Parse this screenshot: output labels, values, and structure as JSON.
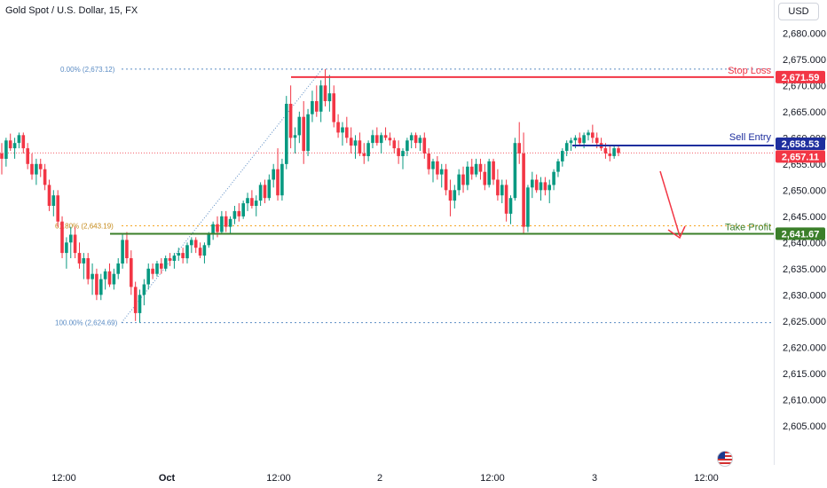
{
  "header": {
    "title": "Gold Spot / U.S. Dollar, 15, FX",
    "currency": "USD"
  },
  "chart_data": {
    "type": "candlestick",
    "ylim": [
      2603,
      2684
    ],
    "y_ticks": [
      2605,
      2610,
      2615,
      2620,
      2625,
      2630,
      2635,
      2640,
      2645,
      2650,
      2655,
      2660,
      2665,
      2670,
      2675,
      2680
    ],
    "x_ticks": [
      "12:00",
      "Oct",
      "12:00",
      "2",
      "12:00",
      "3",
      "12:00"
    ],
    "colors": {
      "up": "#089981",
      "down": "#f23645",
      "stop": "#f23645",
      "entry": "#1e2e9e",
      "take": "#3b7f2a",
      "fib": "#5b8cc4",
      "fib618": "#f5a623",
      "arrow": "#f23645"
    },
    "candles_ohlc": [
      [
        2657.0,
        2659.0,
        2653.0,
        2656.0
      ],
      [
        2656.0,
        2660.0,
        2654.5,
        2659.5
      ],
      [
        2659.5,
        2660.8,
        2657.5,
        2658.0
      ],
      [
        2658.0,
        2660.0,
        2656.0,
        2659.0
      ],
      [
        2659.0,
        2661.0,
        2658.0,
        2660.5
      ],
      [
        2660.5,
        2661.0,
        2657.0,
        2658.0
      ],
      [
        2658.0,
        2659.0,
        2654.0,
        2655.0
      ],
      [
        2655.0,
        2657.0,
        2652.0,
        2653.0
      ],
      [
        2653.0,
        2656.0,
        2651.0,
        2655.0
      ],
      [
        2655.0,
        2656.0,
        2652.5,
        2654.0
      ],
      [
        2654.0,
        2655.0,
        2650.0,
        2651.0
      ],
      [
        2651.0,
        2652.0,
        2646.0,
        2647.0
      ],
      [
        2647.0,
        2650.0,
        2645.0,
        2649.0
      ],
      [
        2649.0,
        2650.0,
        2643.0,
        2644.0
      ],
      [
        2644.0,
        2645.0,
        2637.0,
        2638.0
      ],
      [
        2638.0,
        2641.0,
        2635.0,
        2640.0
      ],
      [
        2640.0,
        2643.0,
        2637.0,
        2641.5
      ],
      [
        2641.5,
        2643.0,
        2637.0,
        2638.0
      ],
      [
        2638.0,
        2640.0,
        2635.0,
        2636.0
      ],
      [
        2636.0,
        2638.0,
        2633.0,
        2637.0
      ],
      [
        2637.0,
        2638.0,
        2632.0,
        2633.0
      ],
      [
        2633.0,
        2636.0,
        2630.0,
        2634.0
      ],
      [
        2634.0,
        2635.0,
        2629.0,
        2630.0
      ],
      [
        2630.0,
        2634.0,
        2629.0,
        2633.0
      ],
      [
        2633.0,
        2635.0,
        2631.0,
        2634.5
      ],
      [
        2634.5,
        2636.0,
        2631.5,
        2632.0
      ],
      [
        2632.0,
        2635.0,
        2631.0,
        2634.0
      ],
      [
        2634.0,
        2637.0,
        2633.0,
        2636.0
      ],
      [
        2636.0,
        2641.5,
        2635.0,
        2640.5
      ],
      [
        2640.5,
        2642.0,
        2636.0,
        2637.0
      ],
      [
        2637.0,
        2638.5,
        2630.0,
        2631.5
      ],
      [
        2631.5,
        2632.5,
        2625.0,
        2626.5
      ],
      [
        2626.5,
        2631.0,
        2624.7,
        2630.0
      ],
      [
        2630.0,
        2633.0,
        2628.0,
        2632.0
      ],
      [
        2632.0,
        2636.0,
        2631.0,
        2635.0
      ],
      [
        2635.0,
        2636.0,
        2633.0,
        2634.0
      ],
      [
        2634.0,
        2636.5,
        2633.5,
        2636.0
      ],
      [
        2636.0,
        2637.0,
        2634.0,
        2635.0
      ],
      [
        2635.0,
        2637.5,
        2634.5,
        2637.0
      ],
      [
        2637.0,
        2638.0,
        2635.5,
        2636.5
      ],
      [
        2636.5,
        2638.0,
        2635.0,
        2637.5
      ],
      [
        2637.5,
        2639.0,
        2636.5,
        2638.0
      ],
      [
        2638.0,
        2639.0,
        2636.0,
        2637.0
      ],
      [
        2637.0,
        2640.0,
        2636.0,
        2639.5
      ],
      [
        2639.5,
        2641.0,
        2638.0,
        2640.5
      ],
      [
        2640.5,
        2641.0,
        2638.0,
        2639.0
      ],
      [
        2639.0,
        2640.0,
        2637.0,
        2637.5
      ],
      [
        2637.5,
        2640.0,
        2636.0,
        2639.5
      ],
      [
        2639.5,
        2642.0,
        2639.0,
        2641.5
      ],
      [
        2641.5,
        2644.0,
        2640.5,
        2643.5
      ],
      [
        2643.5,
        2645.0,
        2641.0,
        2642.0
      ],
      [
        2642.0,
        2646.0,
        2641.5,
        2645.0
      ],
      [
        2645.0,
        2646.0,
        2642.0,
        2643.0
      ],
      [
        2643.0,
        2645.0,
        2641.5,
        2644.5
      ],
      [
        2644.5,
        2647.0,
        2643.5,
        2646.0
      ],
      [
        2646.0,
        2647.5,
        2644.0,
        2645.0
      ],
      [
        2645.0,
        2648.0,
        2644.5,
        2647.5
      ],
      [
        2647.5,
        2649.5,
        2646.0,
        2648.5
      ],
      [
        2648.5,
        2650.0,
        2646.5,
        2647.0
      ],
      [
        2647.0,
        2649.0,
        2645.0,
        2648.0
      ],
      [
        2648.0,
        2651.5,
        2647.0,
        2651.0
      ],
      [
        2651.0,
        2652.0,
        2647.5,
        2648.5
      ],
      [
        2648.5,
        2653.0,
        2648.0,
        2652.0
      ],
      [
        2652.0,
        2655.0,
        2650.5,
        2654.0
      ],
      [
        2654.0,
        2658.0,
        2648.0,
        2649.0
      ],
      [
        2649.0,
        2656.0,
        2648.0,
        2655.0
      ],
      [
        2655.0,
        2668.0,
        2654.0,
        2666.5
      ],
      [
        2666.5,
        2670.0,
        2658.0,
        2660.0
      ],
      [
        2660.0,
        2662.0,
        2657.0,
        2660.5
      ],
      [
        2660.5,
        2665.0,
        2659.0,
        2664.0
      ],
      [
        2664.0,
        2667.0,
        2655.0,
        2657.5
      ],
      [
        2657.5,
        2665.5,
        2656.5,
        2664.5
      ],
      [
        2664.5,
        2669.0,
        2663.0,
        2667.0
      ],
      [
        2667.0,
        2670.0,
        2664.0,
        2665.0
      ],
      [
        2665.0,
        2671.0,
        2663.0,
        2670.0
      ],
      [
        2670.0,
        2673.1,
        2666.0,
        2667.0
      ],
      [
        2667.0,
        2672.0,
        2665.0,
        2668.5
      ],
      [
        2668.5,
        2670.0,
        2662.0,
        2663.0
      ],
      [
        2663.0,
        2664.5,
        2660.0,
        2661.0
      ],
      [
        2661.0,
        2663.0,
        2658.5,
        2662.0
      ],
      [
        2662.0,
        2664.0,
        2659.0,
        2660.0
      ],
      [
        2660.0,
        2662.0,
        2657.0,
        2658.5
      ],
      [
        2658.5,
        2660.5,
        2656.0,
        2659.5
      ],
      [
        2659.5,
        2661.0,
        2656.5,
        2657.0
      ],
      [
        2657.0,
        2659.0,
        2655.0,
        2656.5
      ],
      [
        2656.5,
        2659.5,
        2655.5,
        2659.0
      ],
      [
        2659.0,
        2661.5,
        2658.0,
        2660.5
      ],
      [
        2660.5,
        2662.0,
        2658.5,
        2659.0
      ],
      [
        2659.0,
        2661.0,
        2657.0,
        2660.5
      ],
      [
        2660.5,
        2662.0,
        2659.5,
        2660.0
      ],
      [
        2660.0,
        2661.0,
        2658.5,
        2659.5
      ],
      [
        2659.5,
        2660.0,
        2657.0,
        2658.0
      ],
      [
        2658.0,
        2659.5,
        2655.0,
        2656.5
      ],
      [
        2656.5,
        2658.0,
        2654.0,
        2657.5
      ],
      [
        2657.5,
        2660.0,
        2656.5,
        2659.5
      ],
      [
        2659.5,
        2661.0,
        2658.0,
        2660.5
      ],
      [
        2660.5,
        2661.0,
        2658.0,
        2659.0
      ],
      [
        2659.0,
        2660.5,
        2657.5,
        2660.0
      ],
      [
        2660.0,
        2661.0,
        2656.0,
        2657.0
      ],
      [
        2657.0,
        2658.0,
        2653.0,
        2654.0
      ],
      [
        2654.0,
        2656.0,
        2651.5,
        2655.5
      ],
      [
        2655.5,
        2656.5,
        2652.0,
        2653.0
      ],
      [
        2653.0,
        2655.0,
        2650.5,
        2654.0
      ],
      [
        2654.0,
        2655.0,
        2649.0,
        2650.0
      ],
      [
        2650.0,
        2652.0,
        2645.0,
        2648.0
      ],
      [
        2648.0,
        2651.0,
        2646.5,
        2650.0
      ],
      [
        2650.0,
        2654.0,
        2649.0,
        2653.0
      ],
      [
        2653.0,
        2654.5,
        2649.5,
        2651.0
      ],
      [
        2651.0,
        2655.5,
        2650.0,
        2654.5
      ],
      [
        2654.5,
        2656.0,
        2652.0,
        2653.0
      ],
      [
        2653.0,
        2656.0,
        2652.5,
        2655.0
      ],
      [
        2655.0,
        2656.0,
        2652.0,
        2653.5
      ],
      [
        2653.5,
        2655.0,
        2650.0,
        2651.0
      ],
      [
        2651.0,
        2656.0,
        2650.5,
        2655.5
      ],
      [
        2655.5,
        2656.0,
        2651.0,
        2652.0
      ],
      [
        2652.0,
        2654.0,
        2648.0,
        2649.0
      ],
      [
        2649.0,
        2652.0,
        2647.5,
        2651.0
      ],
      [
        2651.0,
        2652.0,
        2644.0,
        2645.5
      ],
      [
        2645.5,
        2649.0,
        2643.5,
        2648.5
      ],
      [
        2648.5,
        2660.0,
        2648.0,
        2659.0
      ],
      [
        2659.0,
        2663.0,
        2655.0,
        2657.0
      ],
      [
        2657.0,
        2661.0,
        2641.5,
        2643.0
      ],
      [
        2643.0,
        2651.0,
        2642.0,
        2650.5
      ],
      [
        2650.5,
        2653.5,
        2648.5,
        2652.0
      ],
      [
        2652.0,
        2653.0,
        2649.5,
        2650.0
      ],
      [
        2650.0,
        2652.5,
        2648.0,
        2651.5
      ],
      [
        2651.5,
        2652.5,
        2649.0,
        2650.0
      ],
      [
        2650.0,
        2652.0,
        2647.5,
        2651.0
      ],
      [
        2651.0,
        2654.0,
        2650.0,
        2653.5
      ],
      [
        2653.5,
        2656.0,
        2652.5,
        2655.5
      ],
      [
        2655.5,
        2658.0,
        2654.5,
        2657.5
      ],
      [
        2657.5,
        2659.5,
        2656.5,
        2659.0
      ],
      [
        2659.0,
        2660.0,
        2657.5,
        2659.5
      ],
      [
        2659.5,
        2660.5,
        2658.0,
        2660.0
      ],
      [
        2660.0,
        2661.0,
        2658.5,
        2659.0
      ],
      [
        2659.0,
        2661.0,
        2658.0,
        2660.5
      ],
      [
        2660.5,
        2661.5,
        2659.5,
        2661.0
      ],
      [
        2661.0,
        2662.5,
        2659.0,
        2660.0
      ],
      [
        2660.0,
        2661.0,
        2658.0,
        2659.0
      ],
      [
        2659.0,
        2660.0,
        2657.5,
        2658.0
      ],
      [
        2658.0,
        2659.0,
        2656.0,
        2657.0
      ],
      [
        2657.0,
        2658.5,
        2655.5,
        2656.5
      ],
      [
        2656.5,
        2658.5,
        2656.0,
        2658.0
      ],
      [
        2658.0,
        2658.5,
        2656.5,
        2657.1
      ]
    ],
    "levels": {
      "stop_loss": {
        "label": "Stop Loss",
        "price": 2671.59,
        "price_text": "2,671.59"
      },
      "sell_entry": {
        "label": "Sell Entry",
        "price": 2658.53,
        "price_text": "2,658.53"
      },
      "current": {
        "price": 2657.11,
        "price_text": "2,657.11"
      },
      "take_profit": {
        "label": "Take Profit",
        "price": 2641.67,
        "price_text": "2,641.67"
      }
    },
    "fib": {
      "level0": {
        "price": 2673.12,
        "label": "0.00% (2,673.12)"
      },
      "level618": {
        "price": 2643.19,
        "label": "61.80% (2,643.19)"
      },
      "level100": {
        "price": 2624.69,
        "label": "100.00% (2,624.69)"
      }
    }
  }
}
